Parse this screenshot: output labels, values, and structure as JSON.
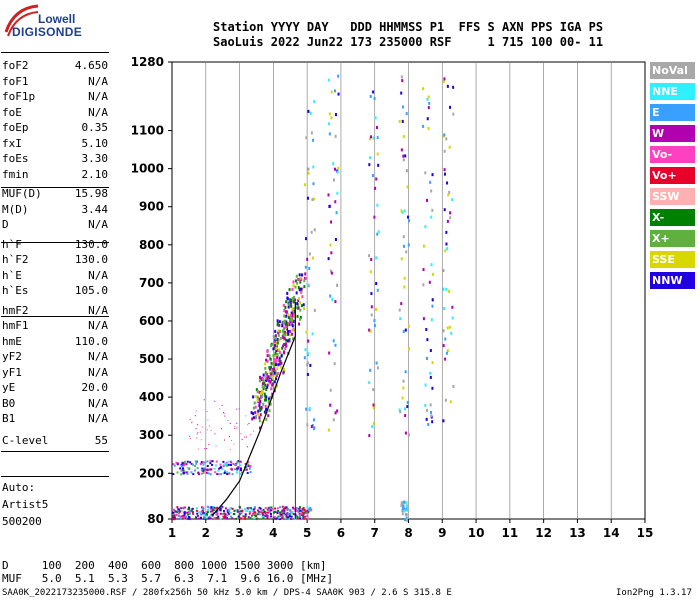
{
  "logo": {
    "top": "Lowell",
    "bottom": "DIGISONDE"
  },
  "header": {
    "line1": "Station YYYY DAY   DDD HHMMSS P1  FFS S AXN PPS IGA PS",
    "line2": "SaoLuis 2022 Jun22 173 235000 RSF     1 715 100 00- 11"
  },
  "params": [
    {
      "name": "foF2",
      "value": "4.650"
    },
    {
      "name": "foF1",
      "value": "N/A"
    },
    {
      "name": "foF1p",
      "value": "N/A"
    },
    {
      "name": "foE",
      "value": "N/A"
    },
    {
      "name": "foEp",
      "value": "0.35"
    },
    {
      "name": "fxI",
      "value": "5.10"
    },
    {
      "name": "foEs",
      "value": "3.30"
    },
    {
      "name": "fmin",
      "value": "2.10"
    },
    {
      "name": "MUF(D)",
      "value": "15.98"
    },
    {
      "name": "M(D)",
      "value": "3.44"
    },
    {
      "name": "D",
      "value": "N/A"
    },
    {
      "name": "h`F",
      "value": "130.0"
    },
    {
      "name": "h`F2",
      "value": "130.0"
    },
    {
      "name": "h`E",
      "value": "N/A"
    },
    {
      "name": "h`Es",
      "value": "105.0"
    },
    {
      "name": "hmF2",
      "value": "N/A"
    },
    {
      "name": "hmF1",
      "value": "N/A"
    },
    {
      "name": "hmE",
      "value": "110.0"
    },
    {
      "name": "yF2",
      "value": "N/A"
    },
    {
      "name": "yF1",
      "value": "N/A"
    },
    {
      "name": "yE",
      "value": "20.0"
    },
    {
      "name": "B0",
      "value": "N/A"
    },
    {
      "name": "B1",
      "value": "N/A"
    },
    {
      "name": "C-level",
      "value": "55"
    }
  ],
  "scaler": {
    "line1": "Auto:",
    "line2": "Artist5",
    "line3": "500200"
  },
  "legend": [
    {
      "label": "NoVal",
      "color": "#a8a8a8"
    },
    {
      "label": "NNE",
      "color": "#2ff0ff"
    },
    {
      "label": "E",
      "color": "#3aa0ff"
    },
    {
      "label": "W",
      "color": "#b000b0"
    },
    {
      "label": "Vo-",
      "color": "#ff40c0"
    },
    {
      "label": "Vo+",
      "color": "#e8002a"
    },
    {
      "label": "SSW",
      "color": "#ffb0b0"
    },
    {
      "label": "X-",
      "color": "#008000"
    },
    {
      "label": "X+",
      "color": "#60b040"
    },
    {
      "label": "SSE",
      "color": "#d8d800"
    },
    {
      "label": "NNW",
      "color": "#2000e0"
    }
  ],
  "mufTable": {
    "line1": "D     100  200  400  600  800 1000 1500 3000 [km]",
    "line2": "MUF   5.0  5.1  5.3  5.7  6.3  7.1  9.6 16.0 [MHz]"
  },
  "footer": {
    "left": "SAA0K_2022173235000.RSF / 280fx256h 50 kHz 5.0 km / DPS-4 SAA0K 903 / 2.6 S 315.8 E",
    "right": "Ion2Png 1.3.17"
  },
  "chart_data": {
    "type": "scatter",
    "title": "",
    "xlabel": "",
    "ylabel": "",
    "xlim": [
      1,
      15
    ],
    "ylim": [
      80,
      1280
    ],
    "xticks": [
      1,
      2,
      3,
      4,
      5,
      6,
      7,
      8,
      9,
      10,
      11,
      12,
      13,
      14,
      15
    ],
    "yticks": [
      80,
      200,
      300,
      400,
      500,
      600,
      700,
      800,
      900,
      1000,
      1100,
      1280
    ],
    "grid": "vertical lines at integer frequencies",
    "trace": {
      "x": [
        2.2,
        2.6,
        3.0,
        3.6,
        4.2,
        4.65,
        4.65
      ],
      "y": [
        90,
        130,
        180,
        310,
        460,
        560,
        650
      ]
    },
    "es_band": {
      "x_min": 1.0,
      "x_max": 5.1,
      "y_min": 82,
      "y_max": 115
    },
    "es_echo": {
      "x_min": 1.0,
      "x_max": 3.3,
      "y_min": 200,
      "y_max": 235
    },
    "f_echo": {
      "x_start": 3.5,
      "x_end": 4.8,
      "y_start": 360,
      "y_end": 700
    }
  }
}
